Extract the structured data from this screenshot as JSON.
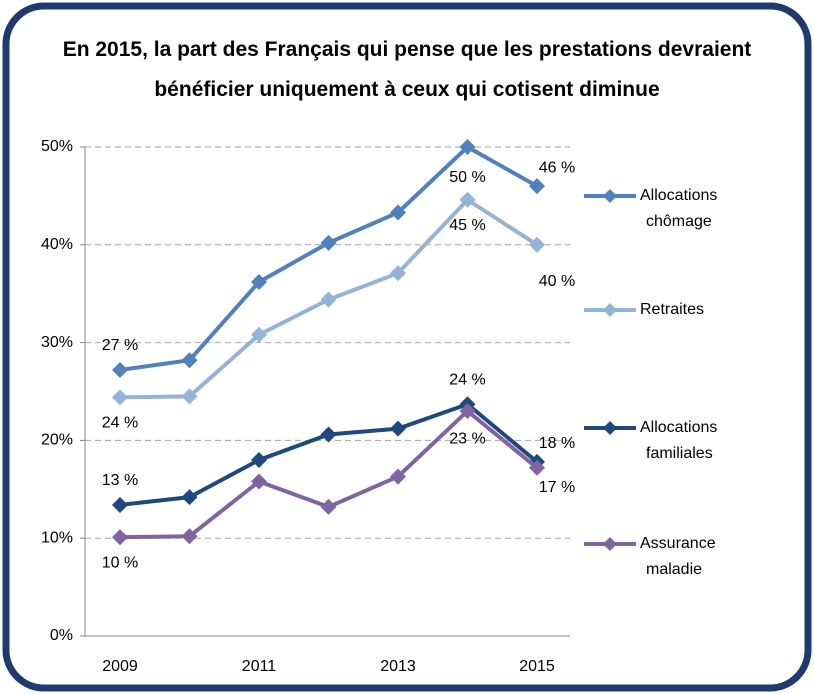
{
  "chart_data": {
    "type": "line",
    "title": "En 2015, la part des Français qui pense que les prestations devraient bénéficier uniquement à ceux qui cotisent diminue",
    "categories": [
      "2009",
      null,
      "2011",
      null,
      "2013",
      null,
      "2015"
    ],
    "series": [
      {
        "name": "Allocations chômage",
        "color": "#4f81bd",
        "values": [
          27.2,
          28.2,
          36.2,
          40.2,
          43.3,
          50,
          46
        ],
        "value_labels": [
          "27 %",
          null,
          null,
          null,
          null,
          "50 %",
          "46 %"
        ]
      },
      {
        "name": "Retraites",
        "color": "#95b3d7",
        "values": [
          24.4,
          24.5,
          30.8,
          34.4,
          37.1,
          44.6,
          40
        ],
        "value_labels": [
          "24 %",
          null,
          null,
          null,
          null,
          "45 %",
          "40 %"
        ]
      },
      {
        "name": "Allocations familiales",
        "color": "#1f497d",
        "values": [
          13.4,
          14.2,
          18,
          20.6,
          21.2,
          23.7,
          17.8
        ],
        "value_labels": [
          "13 %",
          null,
          null,
          null,
          null,
          "24 %",
          "18 %"
        ]
      },
      {
        "name": "Assurance maladie",
        "color": "#8064a2",
        "values": [
          10.1,
          10.2,
          15.8,
          13.2,
          16.3,
          23,
          17.2
        ],
        "value_labels": [
          "10 %",
          null,
          null,
          null,
          null,
          "23 %",
          "17 %"
        ]
      }
    ],
    "ylim": [
      0,
      50
    ],
    "yticks": [
      {
        "value": 0,
        "label": "0%"
      },
      {
        "value": 10,
        "label": "10%"
      },
      {
        "value": 20,
        "label": "20%"
      },
      {
        "value": 30,
        "label": "30%"
      },
      {
        "value": 40,
        "label": "40%"
      },
      {
        "value": 50,
        "label": "50%"
      }
    ],
    "grid": true,
    "legend": "right"
  }
}
